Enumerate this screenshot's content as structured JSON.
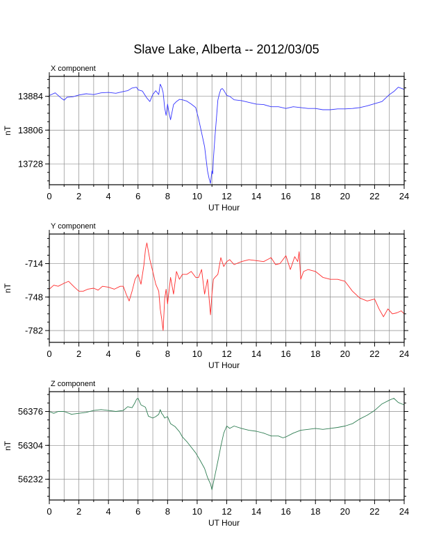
{
  "title": "Slave Lake, Alberta -- 2012/03/05",
  "chart_data": [
    {
      "type": "line",
      "panel_title": "X component",
      "xlabel": "UT Hour",
      "ylabel": "nT",
      "xlim": [
        0,
        24
      ],
      "ylim": [
        13680,
        13930
      ],
      "x_ticks": [
        "0",
        "2",
        "4",
        "6",
        "8",
        "10",
        "12",
        "14",
        "16",
        "18",
        "20",
        "22",
        "24"
      ],
      "y_ticks": [
        13884,
        13806,
        13728
      ],
      "grid": true,
      "color": "#3333ff",
      "series": [
        {
          "x": [
            0,
            0.4,
            0.8,
            1.0,
            1.2,
            1.6,
            2.0,
            2.5,
            3.0,
            3.5,
            4.0,
            4.5,
            5.0,
            5.3,
            5.6,
            5.9,
            6.0,
            6.3,
            6.6,
            6.8,
            7.0,
            7.2,
            7.4,
            7.5,
            7.6,
            7.7,
            7.8,
            7.9,
            8.0,
            8.1,
            8.2,
            8.4,
            8.6,
            8.8,
            9.0,
            9.3,
            9.6,
            9.9,
            10.1,
            10.3,
            10.5,
            10.6,
            10.7,
            10.8,
            10.9,
            11.0,
            11.05,
            11.1,
            11.2,
            11.3,
            11.4,
            11.5,
            11.6,
            11.7,
            11.8,
            11.9,
            12.0,
            12.2,
            12.5,
            13.0,
            13.5,
            14.0,
            14.5,
            15.0,
            15.5,
            16.0,
            16.5,
            17.0,
            17.5,
            18.0,
            18.5,
            19.0,
            19.5,
            20.0,
            20.5,
            21.0,
            21.5,
            22.0,
            22.5,
            23.0,
            23.3,
            23.6,
            24.0
          ],
          "values": [
            13886,
            13892,
            13880,
            13875,
            13882,
            13883,
            13887,
            13890,
            13888,
            13892,
            13893,
            13891,
            13895,
            13897,
            13903,
            13905,
            13899,
            13896,
            13880,
            13872,
            13888,
            13897,
            13888,
            13912,
            13905,
            13893,
            13858,
            13840,
            13866,
            13845,
            13830,
            13865,
            13872,
            13877,
            13876,
            13873,
            13866,
            13858,
            13832,
            13800,
            13768,
            13740,
            13712,
            13695,
            13683,
            13712,
            13705,
            13740,
            13790,
            13832,
            13875,
            13890,
            13900,
            13902,
            13898,
            13892,
            13886,
            13884,
            13876,
            13874,
            13870,
            13866,
            13865,
            13860,
            13860,
            13856,
            13860,
            13858,
            13856,
            13856,
            13853,
            13853,
            13855,
            13855,
            13856,
            13858,
            13862,
            13867,
            13872,
            13888,
            13895,
            13905,
            13900
          ]
        }
      ]
    },
    {
      "type": "line",
      "panel_title": "Y component",
      "xlabel": "UT Hour",
      "ylabel": "nT",
      "xlim": [
        0,
        24
      ],
      "ylim": [
        -794,
        -684
      ],
      "x_ticks": [
        "0",
        "2",
        "4",
        "6",
        "8",
        "10",
        "12",
        "14",
        "16",
        "18",
        "20",
        "22",
        "24"
      ],
      "y_ticks": [
        -714,
        -748,
        -782
      ],
      "grid": true,
      "color": "#ff2a2a",
      "series": [
        {
          "x": [
            0,
            0.3,
            0.6,
            1.0,
            1.3,
            1.7,
            2.0,
            2.3,
            2.6,
            3.0,
            3.3,
            3.6,
            4.0,
            4.4,
            4.8,
            5.0,
            5.2,
            5.4,
            5.6,
            5.8,
            6.0,
            6.2,
            6.4,
            6.5,
            6.6,
            6.8,
            7.0,
            7.2,
            7.4,
            7.5,
            7.6,
            7.7,
            7.8,
            7.9,
            8.0,
            8.2,
            8.4,
            8.6,
            8.8,
            9.0,
            9.3,
            9.6,
            9.9,
            10.1,
            10.3,
            10.5,
            10.7,
            10.9,
            11.0,
            11.1,
            11.2,
            11.4,
            11.6,
            11.8,
            12.0,
            12.2,
            12.5,
            13.0,
            13.5,
            14.0,
            14.5,
            15.0,
            15.3,
            15.6,
            16.0,
            16.3,
            16.6,
            16.8,
            16.9,
            17.0,
            17.2,
            17.5,
            18.0,
            18.5,
            19.0,
            19.5,
            20.0,
            20.5,
            21.0,
            21.5,
            22.0,
            22.3,
            22.6,
            22.9,
            23.2,
            23.5,
            23.8,
            24.0
          ],
          "values": [
            -740,
            -736,
            -737,
            -734,
            -732,
            -738,
            -742,
            -742,
            -740,
            -739,
            -741,
            -737,
            -738,
            -740,
            -737,
            -737,
            -745,
            -752,
            -742,
            -730,
            -725,
            -735,
            -715,
            -700,
            -693,
            -710,
            -722,
            -735,
            -742,
            -760,
            -770,
            -782,
            -750,
            -740,
            -755,
            -728,
            -745,
            -722,
            -730,
            -725,
            -725,
            -722,
            -728,
            -728,
            -720,
            -745,
            -730,
            -766,
            -745,
            -730,
            -728,
            -725,
            -708,
            -717,
            -712,
            -710,
            -715,
            -712,
            -710,
            -711,
            -712,
            -708,
            -715,
            -714,
            -706,
            -720,
            -707,
            -712,
            -702,
            -730,
            -722,
            -720,
            -722,
            -728,
            -730,
            -730,
            -732,
            -742,
            -749,
            -752,
            -750,
            -760,
            -768,
            -760,
            -765,
            -764,
            -762,
            -765
          ]
        }
      ]
    },
    {
      "type": "line",
      "panel_title": "Z component",
      "xlabel": "UT Hour",
      "ylabel": "nT",
      "xlim": [
        0,
        24
      ],
      "ylim": [
        56188,
        56418
      ],
      "x_ticks": [
        "0",
        "2",
        "4",
        "6",
        "8",
        "10",
        "12",
        "14",
        "16",
        "18",
        "20",
        "22",
        "24"
      ],
      "y_ticks": [
        56376,
        56304,
        56232
      ],
      "grid": true,
      "color": "#2e7d52",
      "series": [
        {
          "x": [
            0,
            0.3,
            0.6,
            1.0,
            1.5,
            2.0,
            2.5,
            3.0,
            3.5,
            4.0,
            4.5,
            5.0,
            5.3,
            5.6,
            5.8,
            5.9,
            6.0,
            6.2,
            6.5,
            6.7,
            7.0,
            7.2,
            7.4,
            7.5,
            7.6,
            7.7,
            7.8,
            8.0,
            8.2,
            8.5,
            8.8,
            9.0,
            9.3,
            9.6,
            9.9,
            10.2,
            10.5,
            10.7,
            10.9,
            11.0,
            11.1,
            11.2,
            11.4,
            11.6,
            11.8,
            12.0,
            12.2,
            12.5,
            13.0,
            13.5,
            14.0,
            14.5,
            15.0,
            15.5,
            15.8,
            16.0,
            16.5,
            17.0,
            17.5,
            18.0,
            18.5,
            19.0,
            19.5,
            20.0,
            20.5,
            21.0,
            21.5,
            22.0,
            22.5,
            23.0,
            23.3,
            23.6,
            24.0
          ],
          "values": [
            56376,
            56372,
            56376,
            56376,
            56370,
            56372,
            56374,
            56378,
            56380,
            56378,
            56376,
            56378,
            56386,
            56384,
            56395,
            56402,
            56404,
            56390,
            56385,
            56366,
            56362,
            56365,
            56370,
            56380,
            56372,
            56368,
            56362,
            56365,
            56350,
            56344,
            56333,
            56322,
            56312,
            56300,
            56288,
            56272,
            56255,
            56236,
            56222,
            56210,
            56225,
            56240,
            56270,
            56302,
            56330,
            56345,
            56340,
            56345,
            56340,
            56336,
            56334,
            56330,
            56324,
            56324,
            56320,
            56322,
            56330,
            56336,
            56338,
            56340,
            56338,
            56340,
            56342,
            56345,
            56350,
            56360,
            56368,
            56378,
            56392,
            56400,
            56404,
            56395,
            56390
          ]
        }
      ]
    }
  ]
}
